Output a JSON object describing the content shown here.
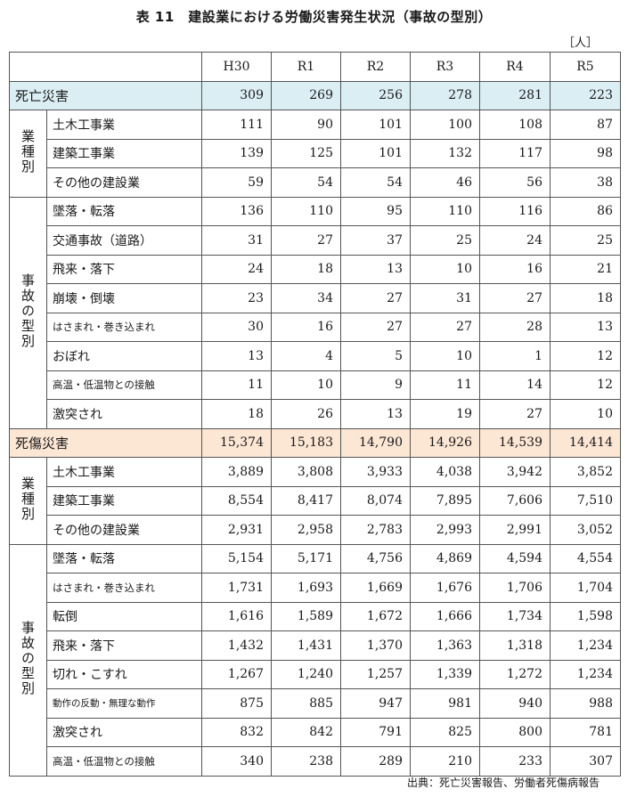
{
  "title": "表 11　建設業における労働災害発生状況（事故の型別）",
  "unit": "［人］",
  "source": "出典：死亡災害報告、労働者死傷病報告",
  "years": [
    "H30",
    "R1",
    "R2",
    "R3",
    "R4",
    "R5"
  ],
  "death": {
    "label": "死亡災害",
    "values": [
      "309",
      "269",
      "256",
      "278",
      "281",
      "223"
    ],
    "industry": {
      "label": "業種別",
      "rows": [
        {
          "label": "土木工事業",
          "values": [
            "111",
            "90",
            "101",
            "100",
            "108",
            "87"
          ]
        },
        {
          "label": "建築工事業",
          "values": [
            "139",
            "125",
            "101",
            "132",
            "117",
            "98"
          ]
        },
        {
          "label": "その他の建設業",
          "values": [
            "59",
            "54",
            "54",
            "46",
            "56",
            "38"
          ]
        }
      ]
    },
    "type": {
      "label": "事故の型別",
      "rows": [
        {
          "label": "墜落・転落",
          "values": [
            "136",
            "110",
            "95",
            "110",
            "116",
            "86"
          ]
        },
        {
          "label": "交通事故（道路）",
          "values": [
            "31",
            "27",
            "37",
            "25",
            "24",
            "25"
          ]
        },
        {
          "label": "飛来・落下",
          "values": [
            "24",
            "18",
            "13",
            "10",
            "16",
            "21"
          ]
        },
        {
          "label": "崩壊・倒壊",
          "values": [
            "23",
            "34",
            "27",
            "31",
            "27",
            "18"
          ]
        },
        {
          "label": "はさまれ・巻き込まれ",
          "values": [
            "30",
            "16",
            "27",
            "27",
            "28",
            "13"
          ]
        },
        {
          "label": "おぼれ",
          "values": [
            "13",
            "4",
            "5",
            "10",
            "1",
            "12"
          ]
        },
        {
          "label": "高温・低温物との接触",
          "values": [
            "11",
            "10",
            "9",
            "11",
            "14",
            "12"
          ]
        },
        {
          "label": "激突され",
          "values": [
            "18",
            "26",
            "13",
            "19",
            "27",
            "10"
          ]
        }
      ]
    }
  },
  "injury": {
    "label": "死傷災害",
    "values": [
      "15,374",
      "15,183",
      "14,790",
      "14,926",
      "14,539",
      "14,414"
    ],
    "industry": {
      "label": "業種別",
      "rows": [
        {
          "label": "土木工事業",
          "values": [
            "3,889",
            "3,808",
            "3,933",
            "4,038",
            "3,942",
            "3,852"
          ]
        },
        {
          "label": "建築工事業",
          "values": [
            "8,554",
            "8,417",
            "8,074",
            "7,895",
            "7,606",
            "7,510"
          ]
        },
        {
          "label": "その他の建設業",
          "values": [
            "2,931",
            "2,958",
            "2,783",
            "2,993",
            "2,991",
            "3,052"
          ]
        }
      ]
    },
    "type": {
      "label": "事故の型別",
      "rows": [
        {
          "label": "墜落・転落",
          "values": [
            "5,154",
            "5,171",
            "4,756",
            "4,869",
            "4,594",
            "4,554"
          ]
        },
        {
          "label": "はさまれ・巻き込まれ",
          "values": [
            "1,731",
            "1,693",
            "1,669",
            "1,676",
            "1,706",
            "1,704"
          ]
        },
        {
          "label": "転倒",
          "values": [
            "1,616",
            "1,589",
            "1,672",
            "1,666",
            "1,734",
            "1,598"
          ]
        },
        {
          "label": "飛来・落下",
          "values": [
            "1,432",
            "1,431",
            "1,370",
            "1,363",
            "1,318",
            "1,234"
          ]
        },
        {
          "label": "切れ・こすれ",
          "values": [
            "1,267",
            "1,240",
            "1,257",
            "1,339",
            "1,272",
            "1,234"
          ]
        },
        {
          "label": "動作の反動・無理な動作",
          "values": [
            "875",
            "885",
            "947",
            "981",
            "940",
            "988"
          ]
        },
        {
          "label": "激突され",
          "values": [
            "832",
            "842",
            "791",
            "825",
            "800",
            "781"
          ]
        },
        {
          "label": "高温・低温物との接触",
          "values": [
            "340",
            "238",
            "289",
            "210",
            "233",
            "307"
          ]
        }
      ]
    }
  }
}
